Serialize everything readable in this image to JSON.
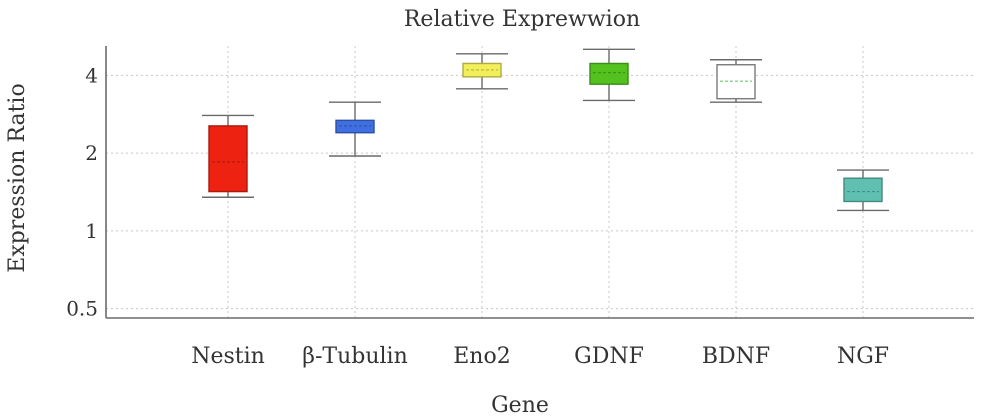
{
  "chart_data": {
    "type": "box",
    "title": "Relative Exprewwion",
    "xlabel": "Gene",
    "ylabel": "Expression Ratio",
    "y_scale": "log2",
    "ylim": [
      0.46,
      5.2
    ],
    "y_ticks": [
      0.5,
      1,
      2,
      4
    ],
    "y_tick_labels": [
      "0.5",
      "1",
      "2",
      "4"
    ],
    "grid": true,
    "categories": [
      "Nestin",
      "β-Tubulin",
      "Eno2",
      "GDNF",
      "BDNF",
      "NGF"
    ],
    "boxes": [
      {
        "category": "Nestin",
        "min": 1.35,
        "q1": 1.42,
        "median": 1.85,
        "q3": 2.55,
        "max": 2.8,
        "color": "#ee2211"
      },
      {
        "category": "β-Tubulin",
        "min": 1.95,
        "q1": 2.4,
        "median": 2.55,
        "q3": 2.68,
        "max": 3.15,
        "color": "#3f6fe0"
      },
      {
        "category": "Eno2",
        "min": 3.55,
        "q1": 3.95,
        "median": 4.2,
        "q3": 4.45,
        "max": 4.85,
        "color": "#f2ef5a"
      },
      {
        "category": "GDNF",
        "min": 3.2,
        "q1": 3.7,
        "median": 4.1,
        "q3": 4.45,
        "max": 5.05,
        "color": "#54c21e"
      },
      {
        "category": "BDNF",
        "min": 3.15,
        "q1": 3.25,
        "median": 3.8,
        "q3": 4.4,
        "max": 4.6,
        "color": "#ffffff"
      },
      {
        "category": "NGF",
        "min": 1.2,
        "q1": 1.3,
        "median": 1.42,
        "q3": 1.6,
        "max": 1.72,
        "color": "#5fbfb0"
      }
    ]
  }
}
